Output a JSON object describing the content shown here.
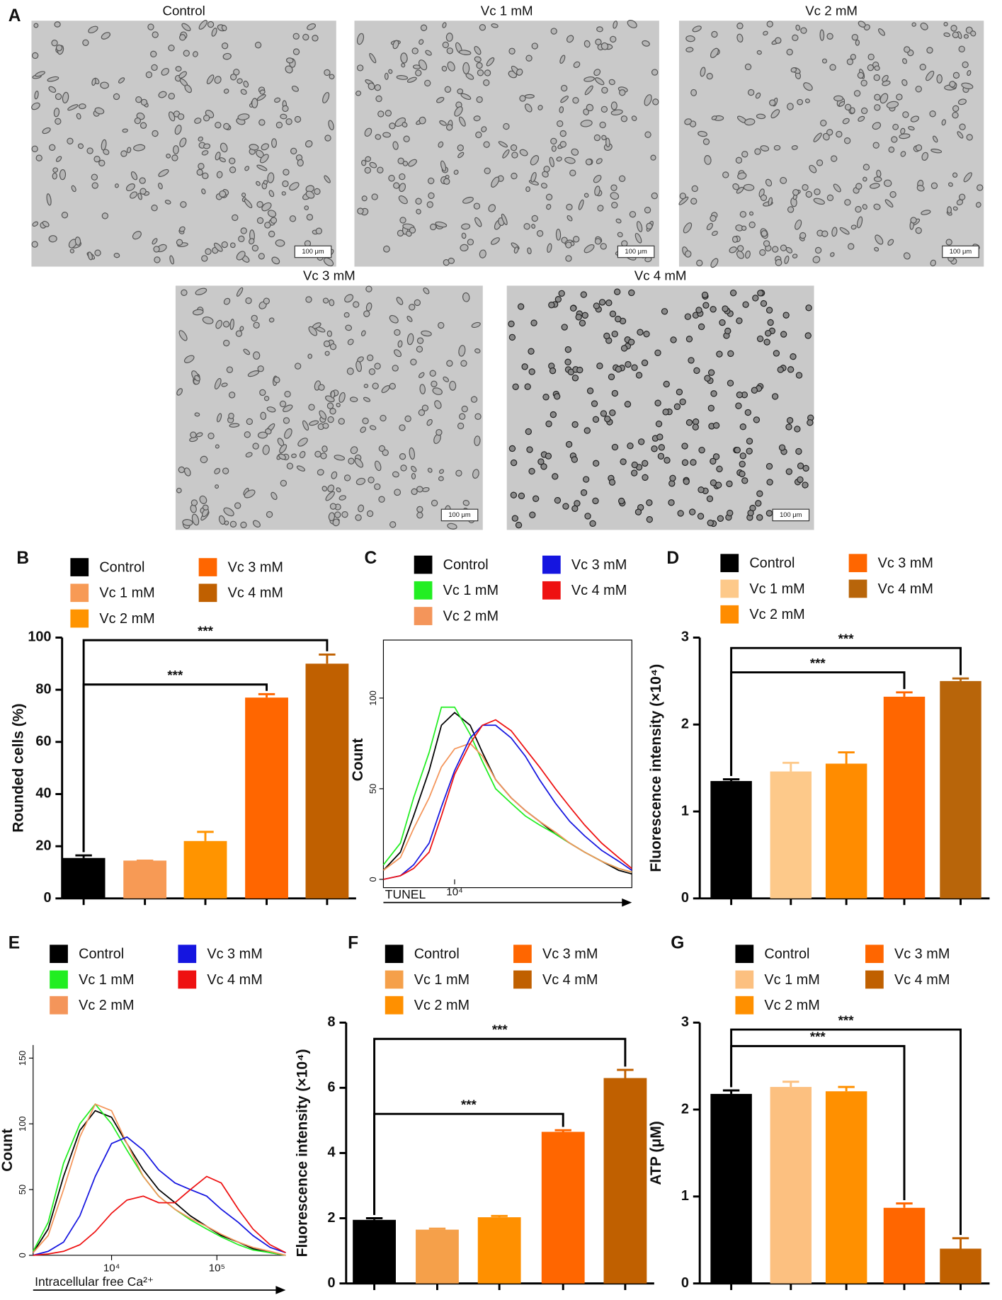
{
  "figure_a": {
    "panel": "A",
    "micrographs": [
      {
        "title": "Control",
        "scale_bar": "100 μm"
      },
      {
        "title": "Vc 1 mM",
        "scale_bar": "100 μm"
      },
      {
        "title": "Vc 2 mM",
        "scale_bar": "100 μm"
      },
      {
        "title": "Vc 3 mM",
        "scale_bar": "100 μm"
      },
      {
        "title": "Vc 4 mM",
        "scale_bar": "100 μm"
      }
    ]
  },
  "chart_data": [
    {
      "type": "bar",
      "panel": "B",
      "ylabel": "Rounded cells (%)",
      "ylim": [
        0,
        100
      ],
      "yticks": [
        0,
        20,
        40,
        60,
        80,
        100
      ],
      "series": [
        {
          "name": "Control",
          "color": "#000000",
          "values": [
            15.5
          ],
          "errors": [
            1
          ]
        },
        {
          "name": "Vc 1 mM",
          "color": "#f79a55",
          "values": [
            14.5
          ],
          "errors": [
            0
          ]
        },
        {
          "name": "Vc 2 mM",
          "color": "#ff9400",
          "values": [
            22
          ],
          "errors": [
            3.5
          ]
        },
        {
          "name": "Vc 3 mM",
          "color": "#ff6600",
          "values": [
            77
          ],
          "errors": [
            1.3
          ]
        },
        {
          "name": "Vc 4 mM",
          "color": "#c06000",
          "values": [
            90
          ],
          "errors": [
            3.5
          ]
        }
      ],
      "annotations": [
        {
          "text": "***",
          "from": 0,
          "to": 3,
          "y": 82
        },
        {
          "text": "***",
          "from": 0,
          "to": 4,
          "y": 99
        }
      ]
    },
    {
      "type": "line",
      "panel": "C",
      "ylabel": "Count",
      "xlabel": "TUNEL",
      "xscale": "log",
      "xlim": [
        3000,
        200000
      ],
      "xticks": [
        {
          "value": 10000,
          "label": "10⁴"
        }
      ],
      "ylim": [
        0,
        132
      ],
      "yticks": [
        0,
        50,
        100
      ],
      "x": [
        3000,
        4000,
        5000,
        6500,
        8000,
        10000,
        13000,
        16000,
        20000,
        26000,
        33000,
        42000,
        55000,
        70000,
        90000,
        120000,
        160000,
        200000
      ],
      "series": [
        {
          "name": "Control",
          "color": "#000000",
          "values": [
            5,
            15,
            35,
            60,
            85,
            92,
            85,
            70,
            55,
            45,
            38,
            32,
            25,
            20,
            15,
            10,
            5,
            3
          ]
        },
        {
          "name": "Vc 1 mM",
          "color": "#22ee22",
          "values": [
            8,
            20,
            45,
            70,
            95,
            95,
            80,
            65,
            50,
            42,
            35,
            30,
            25,
            20,
            15,
            10,
            6,
            4
          ]
        },
        {
          "name": "Vc 2 mM",
          "color": "#f4955a",
          "values": [
            5,
            12,
            28,
            45,
            62,
            72,
            75,
            68,
            55,
            45,
            38,
            32,
            26,
            20,
            15,
            10,
            6,
            4
          ]
        },
        {
          "name": "Vc 3 mM",
          "color": "#1515e0",
          "values": [
            0,
            2,
            8,
            20,
            40,
            60,
            78,
            85,
            85,
            78,
            68,
            55,
            42,
            32,
            24,
            16,
            10,
            5
          ]
        },
        {
          "name": "Vc 4 mM",
          "color": "#ee1111",
          "values": [
            0,
            2,
            6,
            15,
            35,
            58,
            75,
            85,
            88,
            82,
            72,
            62,
            50,
            40,
            30,
            20,
            12,
            6
          ]
        }
      ]
    },
    {
      "type": "bar",
      "panel": "D",
      "ylabel": "Fluorescence intensity (×10⁴)",
      "ylim": [
        0,
        3
      ],
      "yticks": [
        0,
        1,
        2,
        3
      ],
      "series": [
        {
          "name": "Control",
          "color": "#000000",
          "values": [
            1.35
          ],
          "errors": [
            0.02
          ]
        },
        {
          "name": "Vc 1 mM",
          "color": "#fdc98a",
          "values": [
            1.46
          ],
          "errors": [
            0.1
          ]
        },
        {
          "name": "Vc 2 mM",
          "color": "#ff8c00",
          "values": [
            1.55
          ],
          "errors": [
            0.13
          ]
        },
        {
          "name": "Vc 3 mM",
          "color": "#ff6600",
          "values": [
            2.32
          ],
          "errors": [
            0.05
          ]
        },
        {
          "name": "Vc 4 mM",
          "color": "#b8650a",
          "values": [
            2.5
          ],
          "errors": [
            0.03
          ]
        }
      ],
      "annotations": [
        {
          "text": "***",
          "from": 0,
          "to": 3,
          "y": 2.6
        },
        {
          "text": "***",
          "from": 0,
          "to": 4,
          "y": 2.88
        }
      ]
    },
    {
      "type": "line",
      "panel": "E",
      "ylabel": "Count",
      "xlabel": "Intracellular free Ca²⁺",
      "xscale": "log",
      "xlim": [
        1800,
        450000
      ],
      "xticks": [
        {
          "value": 10000,
          "label": "10⁴"
        },
        {
          "value": 100000,
          "label": "10⁵"
        }
      ],
      "ylim": [
        0,
        160
      ],
      "yticks": [
        0,
        50,
        100,
        150
      ],
      "x": [
        1800,
        2500,
        3500,
        5000,
        7000,
        10000,
        14000,
        20000,
        28000,
        40000,
        56000,
        80000,
        110000,
        160000,
        220000,
        320000,
        450000
      ],
      "series": [
        {
          "name": "Control",
          "color": "#000000",
          "values": [
            2,
            20,
            60,
            95,
            110,
            105,
            85,
            65,
            50,
            40,
            30,
            22,
            15,
            10,
            5,
            2,
            0
          ]
        },
        {
          "name": "Vc 1 mM",
          "color": "#22ee22",
          "values": [
            3,
            25,
            70,
            100,
            115,
            100,
            80,
            60,
            45,
            35,
            27,
            20,
            14,
            8,
            4,
            2,
            0
          ]
        },
        {
          "name": "Vc 2 mM",
          "color": "#f4955a",
          "values": [
            2,
            15,
            50,
            90,
            115,
            110,
            85,
            60,
            45,
            35,
            28,
            22,
            16,
            10,
            6,
            3,
            0
          ]
        },
        {
          "name": "Vc 3 mM",
          "color": "#1515e0",
          "values": [
            0,
            3,
            10,
            30,
            60,
            85,
            90,
            80,
            65,
            55,
            50,
            45,
            35,
            25,
            15,
            6,
            2
          ]
        },
        {
          "name": "Vc 4 mM",
          "color": "#ee1111",
          "values": [
            0,
            1,
            3,
            8,
            18,
            32,
            42,
            45,
            40,
            40,
            50,
            60,
            55,
            35,
            20,
            8,
            2
          ]
        }
      ]
    },
    {
      "type": "bar",
      "panel": "F",
      "ylabel": "Fluorescence intensity (×10⁴)",
      "ylim": [
        0,
        8
      ],
      "yticks": [
        0,
        2,
        4,
        6,
        8
      ],
      "series": [
        {
          "name": "Control",
          "color": "#000000",
          "values": [
            1.95
          ],
          "errors": [
            0.05
          ]
        },
        {
          "name": "Vc 1 mM",
          "color": "#f5a04a",
          "values": [
            1.65
          ],
          "errors": [
            0.03
          ]
        },
        {
          "name": "Vc 2 mM",
          "color": "#ff9000",
          "values": [
            2.03
          ],
          "errors": [
            0.04
          ]
        },
        {
          "name": "Vc 3 mM",
          "color": "#ff6600",
          "values": [
            4.65
          ],
          "errors": [
            0.05
          ]
        },
        {
          "name": "Vc 4 mM",
          "color": "#c06000",
          "values": [
            6.3
          ],
          "errors": [
            0.25
          ]
        }
      ],
      "annotations": [
        {
          "text": "***",
          "from": 0,
          "to": 3,
          "y": 5.2
        },
        {
          "text": "***",
          "from": 0,
          "to": 4,
          "y": 7.5
        }
      ]
    },
    {
      "type": "bar",
      "panel": "G",
      "ylabel": "ATP (μM)",
      "ylim": [
        0,
        3
      ],
      "yticks": [
        0,
        1,
        2,
        3
      ],
      "series": [
        {
          "name": "Control",
          "color": "#000000",
          "values": [
            2.18
          ],
          "errors": [
            0.04
          ]
        },
        {
          "name": "Vc 1 mM",
          "color": "#fcc080",
          "values": [
            2.26
          ],
          "errors": [
            0.06
          ]
        },
        {
          "name": "Vc 2 mM",
          "color": "#ff9000",
          "values": [
            2.21
          ],
          "errors": [
            0.05
          ]
        },
        {
          "name": "Vc 3 mM",
          "color": "#ff6600",
          "values": [
            0.87
          ],
          "errors": [
            0.05
          ]
        },
        {
          "name": "Vc 4 mM",
          "color": "#c06000",
          "values": [
            0.4
          ],
          "errors": [
            0.12
          ]
        }
      ],
      "annotations": [
        {
          "text": "***",
          "from": 0,
          "to": 3,
          "y": 2.73
        },
        {
          "text": "***",
          "from": 0,
          "to": 4,
          "y": 2.92
        }
      ]
    }
  ]
}
